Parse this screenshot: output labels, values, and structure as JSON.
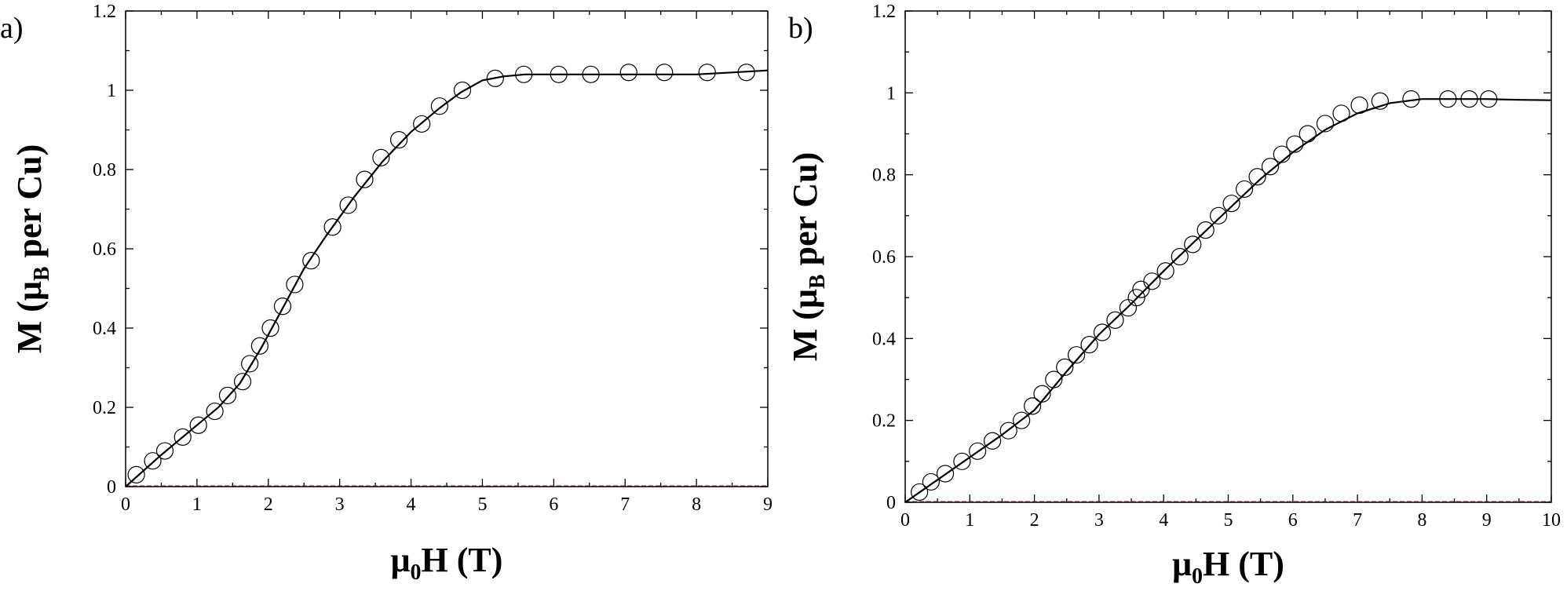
{
  "chart_data": [
    {
      "type": "scatter",
      "panel_label": "a)",
      "xlabel_main": "μ",
      "xlabel_sub": "0",
      "xlabel_rest": "H (T)",
      "ylabel_main": "M (μ",
      "ylabel_sub": "B",
      "ylabel_rest": " per Cu)",
      "xlim": [
        0,
        9
      ],
      "ylim": [
        0,
        1.2
      ],
      "xticks": [
        0,
        1,
        2,
        3,
        4,
        5,
        6,
        7,
        8,
        9
      ],
      "yticks": [
        0,
        0.2,
        0.4,
        0.6,
        0.8,
        1,
        1.2
      ],
      "xtick_labels": [
        "0",
        "1",
        "2",
        "3",
        "4",
        "5",
        "6",
        "7",
        "8",
        "9"
      ],
      "ytick_labels": [
        "0",
        "0.2",
        "0.4",
        "0.6",
        "0.8",
        "1",
        "1.2"
      ],
      "series": [
        {
          "marker": "open-circle",
          "x": [
            0.15,
            0.38,
            0.55,
            0.8,
            1.02,
            1.25,
            1.43,
            1.64,
            1.74,
            1.88,
            2.03,
            2.2,
            2.37,
            2.6,
            2.9,
            3.12,
            3.35,
            3.58,
            3.83,
            4.15,
            4.4,
            4.72,
            5.18,
            5.58,
            6.07,
            6.52,
            7.05,
            7.55,
            8.15,
            8.7
          ],
          "y": [
            0.03,
            0.065,
            0.09,
            0.125,
            0.155,
            0.19,
            0.23,
            0.265,
            0.31,
            0.355,
            0.4,
            0.455,
            0.51,
            0.57,
            0.655,
            0.71,
            0.775,
            0.83,
            0.875,
            0.915,
            0.96,
            1.0,
            1.03,
            1.04,
            1.04,
            1.04,
            1.045,
            1.045,
            1.045,
            1.045
          ]
        },
        {
          "type": "line",
          "x": [
            0,
            0.5,
            1,
            1.3,
            1.6,
            1.9,
            2.2,
            2.5,
            2.8,
            3.2,
            3.6,
            4.0,
            4.4,
            4.7,
            5.0,
            5.3,
            5.6,
            6.0,
            7.0,
            8.0,
            8.5,
            9.0
          ],
          "y": [
            0,
            0.08,
            0.155,
            0.2,
            0.26,
            0.35,
            0.45,
            0.55,
            0.63,
            0.73,
            0.82,
            0.895,
            0.955,
            0.995,
            1.025,
            1.035,
            1.04,
            1.04,
            1.04,
            1.04,
            1.045,
            1.05
          ]
        },
        {
          "type": "line",
          "x": [
            0,
            9
          ],
          "y": [
            0,
            0
          ]
        }
      ]
    },
    {
      "type": "scatter",
      "panel_label": "b)",
      "xlabel_main": "μ",
      "xlabel_sub": "0",
      "xlabel_rest": "H (T)",
      "ylabel_main": "M (μ",
      "ylabel_sub": "B",
      "ylabel_rest": " per Cu)",
      "xlim": [
        0,
        10
      ],
      "ylim": [
        0,
        1.2
      ],
      "xticks": [
        0,
        1,
        2,
        3,
        4,
        5,
        6,
        7,
        8,
        9,
        10
      ],
      "yticks": [
        0,
        0.2,
        0.4,
        0.6,
        0.8,
        1,
        1.2
      ],
      "xtick_labels": [
        "0",
        "1",
        "2",
        "3",
        "4",
        "5",
        "6",
        "7",
        "8",
        "9",
        "10"
      ],
      "ytick_labels": [
        "0",
        "0.2",
        "0.4",
        "0.6",
        "0.8",
        "1",
        "1.2"
      ],
      "series": [
        {
          "marker": "open-circle",
          "x": [
            0.22,
            0.4,
            0.62,
            0.88,
            1.12,
            1.35,
            1.6,
            1.8,
            1.97,
            2.12,
            2.3,
            2.47,
            2.65,
            2.85,
            3.05,
            3.25,
            3.45,
            3.58,
            3.65,
            3.82,
            4.03,
            4.25,
            4.45,
            4.65,
            4.85,
            5.05,
            5.25,
            5.45,
            5.65,
            5.83,
            6.03,
            6.23,
            6.5,
            6.75,
            7.03,
            7.35,
            7.83,
            8.4,
            8.73,
            9.03
          ],
          "y": [
            0.025,
            0.05,
            0.07,
            0.1,
            0.125,
            0.15,
            0.175,
            0.2,
            0.235,
            0.265,
            0.3,
            0.33,
            0.36,
            0.385,
            0.415,
            0.445,
            0.475,
            0.5,
            0.52,
            0.54,
            0.565,
            0.6,
            0.63,
            0.665,
            0.7,
            0.73,
            0.765,
            0.795,
            0.82,
            0.85,
            0.875,
            0.9,
            0.925,
            0.95,
            0.97,
            0.98,
            0.985,
            0.985,
            0.985,
            0.985
          ]
        },
        {
          "type": "line",
          "x": [
            0,
            0.5,
            1,
            1.5,
            2,
            2.5,
            3,
            3.5,
            4,
            4.5,
            5,
            5.5,
            6,
            6.5,
            7,
            7.5,
            8,
            8.5,
            9,
            9.5,
            10
          ],
          "y": [
            0,
            0.055,
            0.11,
            0.165,
            0.225,
            0.32,
            0.41,
            0.485,
            0.565,
            0.64,
            0.715,
            0.79,
            0.855,
            0.91,
            0.95,
            0.975,
            0.985,
            0.985,
            0.985,
            0.983,
            0.982
          ]
        },
        {
          "type": "line",
          "x": [
            0,
            10
          ],
          "y": [
            0,
            0
          ]
        }
      ]
    }
  ]
}
